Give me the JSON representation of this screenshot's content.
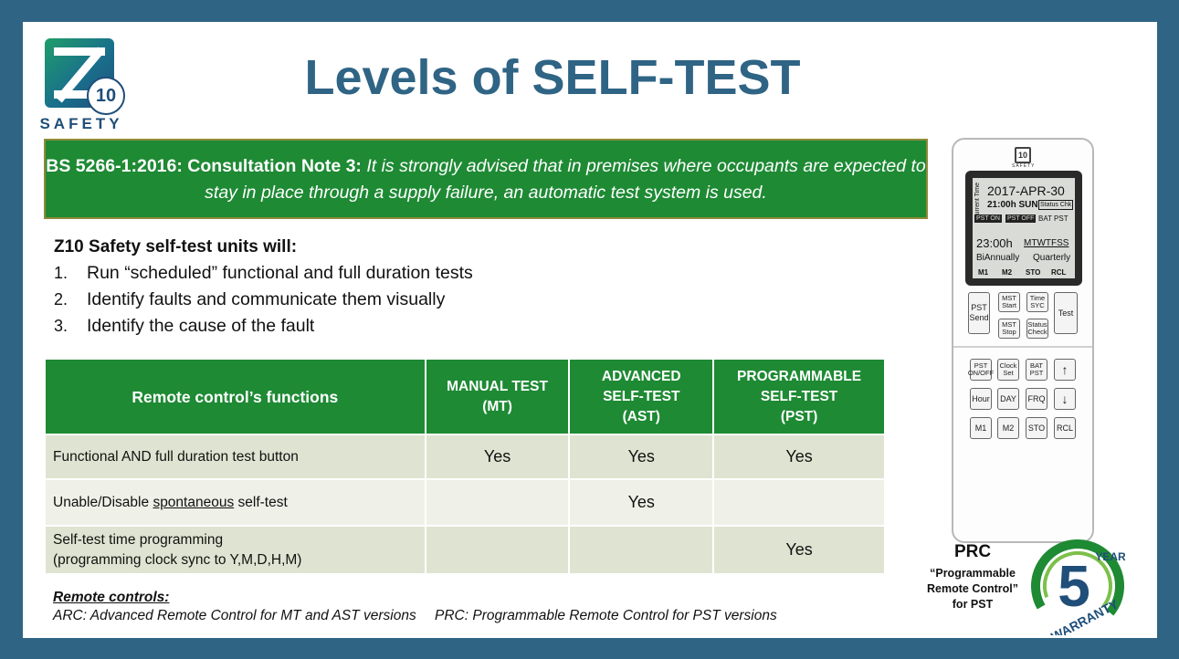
{
  "logo": {
    "mark_number": "10",
    "text": "SAFETY"
  },
  "title": "Levels of SELF-TEST",
  "note": {
    "label": "BS 5266-1:2016: Consultation Note 3:",
    "text": "It is strongly advised that in premises where occupants are expected to stay in place through a supply failure, an automatic test system is used."
  },
  "intro": {
    "heading": "Z10 Safety self-test units will:",
    "items": [
      {
        "num": "1.",
        "text": "Run “scheduled” functional and full duration tests"
      },
      {
        "num": "2.",
        "text": "Identify faults and communicate them visually"
      },
      {
        "num": "3.",
        "text": "Identify the cause of the fault"
      }
    ]
  },
  "table": {
    "headers": {
      "functions": "Remote control’s functions",
      "mt_line1": "MANUAL TEST",
      "mt_line2": "(MT)",
      "ast_line1": "ADVANCED",
      "ast_line2": "SELF-TEST",
      "ast_line3": "(AST)",
      "pst_line1": "PROGRAMMABLE",
      "pst_line2": "SELF-TEST",
      "pst_line3": "(PST)"
    },
    "rows": [
      {
        "function": "Functional AND full duration test button",
        "mt": "Yes",
        "ast": "Yes",
        "pst": "Yes"
      },
      {
        "function_pre": "Unable/Disable ",
        "function_u": "spontaneous",
        "function_post": " self-test",
        "mt": "",
        "ast": "Yes",
        "pst": ""
      },
      {
        "function_line1": "Self-test time programming",
        "function_line2": "(programming clock sync to Y,M,D,H,M)",
        "mt": "",
        "ast": "",
        "pst": "Yes"
      }
    ]
  },
  "footer": {
    "heading": "Remote controls:",
    "arc": "ARC: Advanced Remote Control for MT and AST versions",
    "prc": "PRC: Programmable Remote Control for PST versions"
  },
  "remote": {
    "logo_number": "10",
    "logo_text": "SAFETY",
    "screen": {
      "current": "Current Time",
      "date": "2017-APR-30",
      "time1": "21:00h SUN",
      "status": "Status Chk",
      "bat_pst": "BAT PST",
      "pst_on": "PST ON",
      "pst_off": "PST OFF",
      "time2": "23:00h",
      "days": "MTWTFSS",
      "biannually": "BiAnnually",
      "quarterly": "Quarterly",
      "m1": "M1",
      "m2": "M2",
      "sto": "STO",
      "rcl": "RCL"
    },
    "buttons": {
      "pst_send": "PST Send",
      "mst_start": "MST Start",
      "time_syc": "Time SYC",
      "test": "Test",
      "mst_stop": "MST Stop",
      "status_check": "Status Check",
      "pst_onoff": "PST ON/OFF",
      "clock_set": "Clock Set",
      "bat_pst": "BAT PST",
      "up": "↑",
      "hour": "Hour",
      "day": "DAY",
      "frq": "FRQ",
      "down": "↓",
      "m1": "M1",
      "m2": "M2",
      "sto": "STO",
      "rcl": "RCL"
    }
  },
  "prc": {
    "title": "PRC",
    "line1": "“Programmable",
    "line2": "Remote Control”",
    "line3": "for PST"
  },
  "warranty": {
    "number": "5",
    "top": "YEAR",
    "bottom": "WARRANTY"
  },
  "colors": {
    "frame": "#2f6485",
    "green": "#1e8a34",
    "title": "#2f6485"
  }
}
